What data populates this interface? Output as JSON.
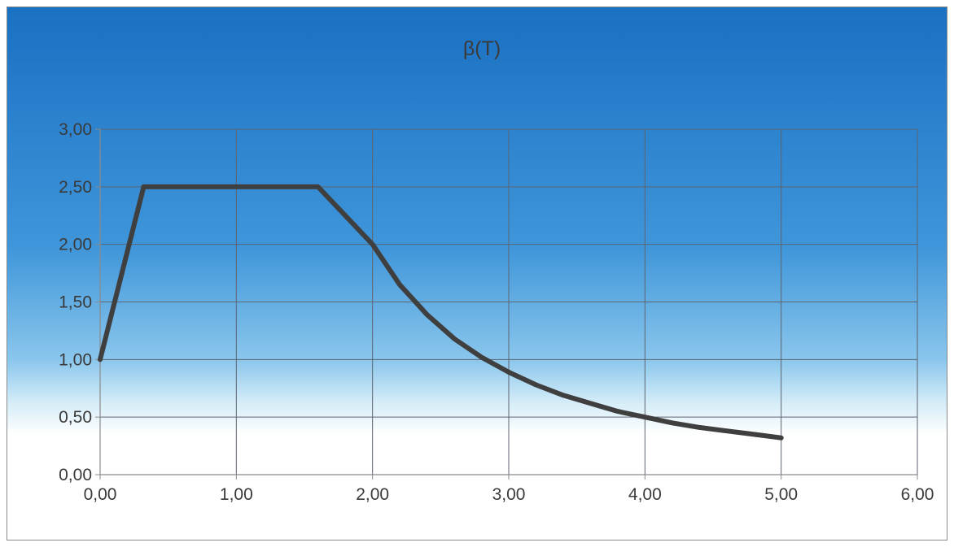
{
  "chart_data": {
    "type": "line",
    "title": "β(T)",
    "xlabel": "",
    "ylabel": "",
    "xlim": [
      0,
      6
    ],
    "ylim": [
      0,
      3
    ],
    "x_ticks": [
      0,
      1,
      2,
      3,
      4,
      5,
      6
    ],
    "y_ticks": [
      0,
      0.5,
      1,
      1.5,
      2,
      2.5,
      3
    ],
    "x_tick_labels": [
      "0,00",
      "1,00",
      "2,00",
      "3,00",
      "4,00",
      "5,00",
      "6,00"
    ],
    "y_tick_labels": [
      "0,00",
      "0,50",
      "1,00",
      "1,50",
      "2,00",
      "2,50",
      "3,00"
    ],
    "grid": true,
    "legend": "none",
    "series": [
      {
        "color": "#3f3f3f",
        "x": [
          0,
          0.32,
          1.6,
          2.0,
          2.2,
          2.4,
          2.6,
          2.8,
          3.0,
          3.2,
          3.4,
          3.6,
          3.8,
          4.0,
          4.2,
          4.4,
          4.6,
          4.8,
          5.0
        ],
        "y": [
          1.0,
          2.5,
          2.5,
          2.0,
          1.65,
          1.39,
          1.18,
          1.02,
          0.89,
          0.78,
          0.69,
          0.62,
          0.55,
          0.5,
          0.45,
          0.41,
          0.38,
          0.35,
          0.32
        ]
      }
    ]
  },
  "colors": {
    "background_top": "#1a70c2",
    "background_mid": "#3f96da",
    "background_light": "#d4ecf8",
    "background_bottom": "#ffffff",
    "gridline": "#5c6470",
    "axis": "#8a8a8a",
    "series_line": "#3f3f3f"
  }
}
